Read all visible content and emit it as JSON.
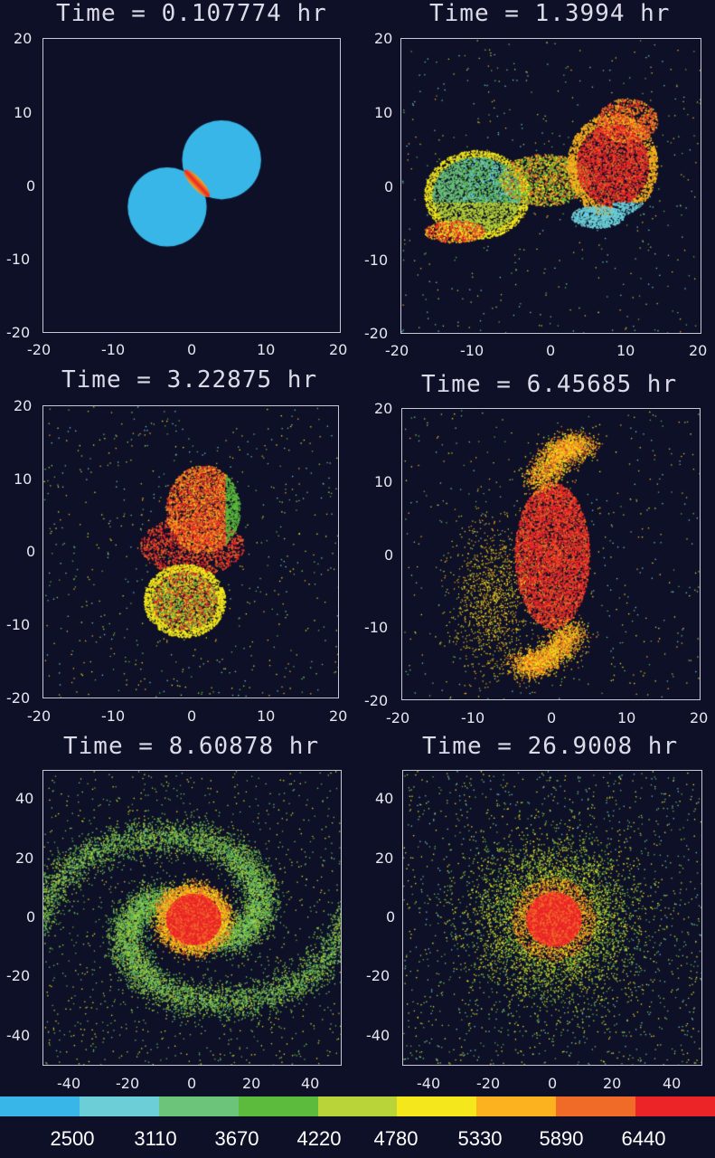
{
  "panels": [
    {
      "title": "Time = 0.107774 hr",
      "x_ticks": [
        "-20",
        "-10",
        "0",
        "10",
        "20"
      ],
      "y_ticks": [
        "20",
        "10",
        "0",
        "-10",
        "-20"
      ],
      "range": [
        -20,
        20
      ],
      "scene": "contact-binary"
    },
    {
      "title": "Time = 1.3994 hr",
      "x_ticks": [
        "-20",
        "-10",
        "0",
        "10",
        "20"
      ],
      "y_ticks": [
        "20",
        "10",
        "0",
        "-10",
        "-20"
      ],
      "range": [
        -20,
        20
      ],
      "scene": "merging-bar"
    },
    {
      "title": "Time = 3.22875 hr",
      "x_ticks": [
        "-20",
        "-10",
        "0",
        "10",
        "20"
      ],
      "y_ticks": [
        "20",
        "10",
        "0",
        "-10",
        "-20"
      ],
      "range": [
        -20,
        20
      ],
      "scene": "vertical-lobes"
    },
    {
      "title": "Time = 6.45685 hr",
      "x_ticks": [
        "-20",
        "-10",
        "0",
        "10",
        "20"
      ],
      "y_ticks": [
        "20",
        "10",
        "0",
        "-10",
        "-20"
      ],
      "range": [
        -20,
        20
      ],
      "scene": "s-shape"
    },
    {
      "title": "Time = 8.60878 hr",
      "x_ticks": [
        "-40",
        "-20",
        "0",
        "20",
        "40"
      ],
      "y_ticks": [
        "40",
        "20",
        "0",
        "-20",
        "-40"
      ],
      "range": [
        -50,
        50
      ],
      "scene": "spiral-arms"
    },
    {
      "title": "Time = 26.9008 hr",
      "x_ticks": [
        "-40",
        "-20",
        "0",
        "20",
        "40"
      ],
      "y_ticks": [
        "40",
        "20",
        "0",
        "-20",
        "-40"
      ],
      "range": [
        -50,
        50
      ],
      "scene": "remnant-core"
    }
  ],
  "colorbar": {
    "colors": [
      "#38b6e8",
      "#6ccfd8",
      "#6cc47a",
      "#5cba3c",
      "#b8d438",
      "#f4e81c",
      "#fbb21e",
      "#f06a28",
      "#ec2428"
    ],
    "labels": [
      "2500",
      "3110",
      "3670",
      "4220",
      "4780",
      "5330",
      "5890",
      "6440"
    ]
  }
}
